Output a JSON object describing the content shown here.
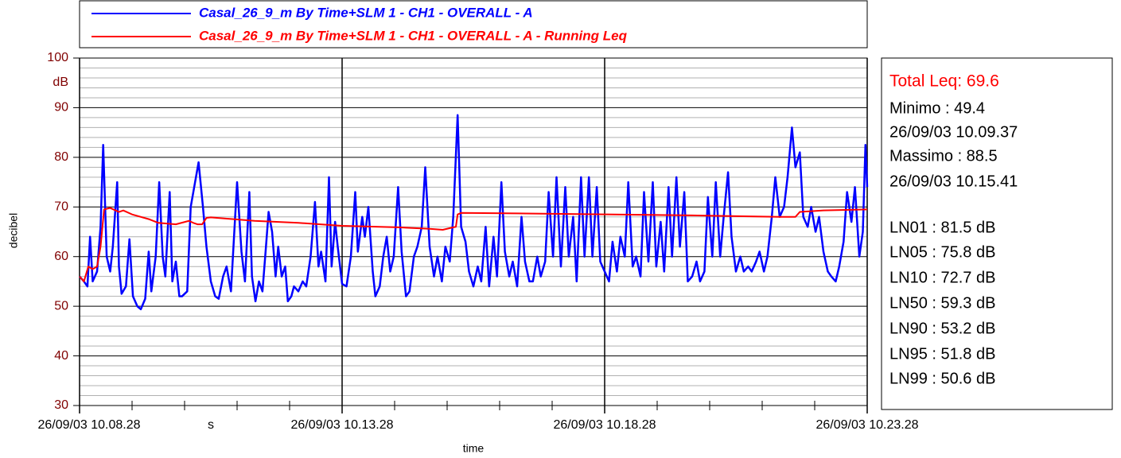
{
  "chart_data": {
    "type": "line",
    "x_label": "time",
    "x_unit": "s",
    "y_label": "decibel",
    "y_unit": "dB",
    "xlim": [
      0,
      900
    ],
    "xticks": [
      {
        "value": 0,
        "label": "26/09/03 10.08.28"
      },
      {
        "value": 300,
        "label": "26/09/03 10.13.28"
      },
      {
        "value": 600,
        "label": "26/09/03 10.18.28"
      },
      {
        "value": 900,
        "label": "26/09/03 10.23.28"
      }
    ],
    "xminorticks": [
      60,
      120,
      180,
      240,
      360,
      420,
      480,
      540,
      660,
      720,
      780,
      840
    ],
    "ylim": [
      30,
      100
    ],
    "yticks": [
      30,
      40,
      50,
      60,
      70,
      80,
      90,
      100
    ],
    "yminorticks": [
      32,
      34,
      36,
      38,
      42,
      44,
      46,
      48,
      52,
      54,
      56,
      58,
      62,
      64,
      66,
      68,
      72,
      74,
      76,
      78,
      82,
      84,
      86,
      88,
      92,
      94,
      96,
      98
    ],
    "grid": true,
    "series": [
      {
        "name": "Casal_26_9_m By Time+SLM 1 - CH1 - OVERALL - A",
        "color": "#0000ff",
        "x": [
          0,
          5,
          9,
          12,
          15,
          20,
          24,
          27,
          31,
          35,
          38,
          43,
          45,
          48,
          53,
          57,
          61,
          66,
          70,
          75,
          79,
          82,
          87,
          91,
          95,
          98,
          103,
          106,
          110,
          114,
          117,
          123,
          127,
          132,
          136,
          141,
          145,
          150,
          155,
          159,
          164,
          168,
          173,
          180,
          185,
          189,
          194,
          197,
          201,
          205,
          209,
          213,
          216,
          220,
          224,
          227,
          231,
          235,
          238,
          242,
          245,
          250,
          255,
          259,
          264,
          269,
          273,
          276,
          281,
          285,
          288,
          292,
          295,
          300,
          305,
          310,
          315,
          318,
          323,
          326,
          330,
          335,
          338,
          343,
          347,
          351,
          355,
          359,
          364,
          368,
          373,
          377,
          382,
          386,
          391,
          395,
          400,
          405,
          409,
          414,
          418,
          423,
          427,
          432,
          436,
          441,
          445,
          450,
          455,
          459,
          464,
          468,
          473,
          477,
          482,
          486,
          491,
          495,
          500,
          505,
          509,
          514,
          518,
          523,
          527,
          532,
          536,
          541,
          545,
          550,
          555,
          559,
          564,
          568,
          573,
          577,
          582,
          586,
          591,
          595,
          600,
          605,
          609,
          614,
          618,
          623,
          627,
          632,
          636,
          641,
          645,
          650,
          655,
          659,
          664,
          668,
          673,
          677,
          682,
          686,
          691,
          695,
          700,
          705,
          709,
          714,
          718,
          723,
          727,
          732,
          736,
          741,
          745,
          750,
          755,
          759,
          764,
          768,
          773,
          777,
          782,
          786,
          791,
          795,
          800,
          805,
          809,
          814,
          818,
          823,
          827,
          832,
          836,
          841,
          845,
          850,
          855,
          859,
          864,
          868,
          873,
          877,
          882,
          886,
          891,
          895,
          898,
          900
        ],
        "values": [
          56,
          55,
          54,
          64,
          55,
          57,
          66,
          82.5,
          60,
          57,
          62,
          75,
          58,
          52.5,
          54,
          63.5,
          52,
          50,
          49.4,
          51.5,
          61,
          53,
          60,
          75,
          60,
          56,
          73,
          55,
          59,
          52,
          52,
          53,
          70,
          75,
          79,
          70,
          62,
          55,
          52,
          51.5,
          56,
          58,
          53,
          75,
          61,
          55,
          73,
          56,
          51,
          55,
          53,
          62,
          69,
          65,
          56,
          62,
          56,
          58,
          51,
          52,
          54,
          53,
          55,
          54,
          60,
          71,
          58,
          61,
          55,
          76,
          58,
          67,
          62,
          54.5,
          54,
          60,
          73,
          61,
          68,
          64,
          70,
          57,
          52,
          54,
          60,
          64,
          57,
          60,
          74,
          61,
          52,
          53,
          60,
          62,
          66,
          78,
          62,
          56,
          60,
          55,
          62,
          59,
          68,
          88.5,
          66,
          63,
          57,
          54,
          58,
          55,
          66,
          54,
          64,
          56,
          75,
          61,
          56,
          59,
          54,
          68,
          59,
          55,
          55,
          60,
          56,
          59,
          73,
          60,
          76,
          58,
          74,
          60,
          68,
          55,
          76,
          60,
          76,
          60,
          74,
          59,
          57,
          55,
          63,
          57,
          64,
          60,
          75,
          58,
          60,
          56,
          73,
          59,
          75,
          58,
          67,
          57,
          74,
          60,
          76,
          62,
          73,
          55,
          56,
          59,
          55,
          57,
          72,
          60,
          75,
          60,
          68,
          77,
          64,
          57,
          60,
          57,
          58,
          57,
          59,
          61,
          57,
          60,
          68,
          76,
          68,
          70,
          76,
          86,
          78,
          81,
          68,
          66,
          70,
          65,
          68,
          61,
          57,
          56,
          55,
          58,
          63,
          73,
          67,
          74,
          60,
          65,
          82.5,
          74
        ]
      },
      {
        "name": "Casal_26_9_m By Time+SLM 1 - CH1 - OVERALL - A - Running Leq",
        "color": "#ff0000",
        "x": [
          0,
          5,
          10,
          15,
          20,
          24,
          28,
          35,
          45,
          50,
          60,
          80,
          90,
          110,
          125,
          130,
          135,
          140,
          145,
          150,
          200,
          250,
          300,
          364,
          400,
          415,
          427,
          430,
          432,
          436,
          500,
          600,
          700,
          800,
          818,
          823,
          850,
          900
        ],
        "values": [
          56,
          55,
          58,
          57.5,
          58,
          62,
          69.5,
          69.8,
          69,
          69.3,
          68.5,
          67.5,
          66.8,
          66.5,
          67.2,
          66.8,
          66.5,
          66.5,
          67.8,
          67.9,
          67.2,
          66.8,
          66.2,
          65.9,
          65.6,
          65.4,
          65.9,
          66,
          68.5,
          68.8,
          68.7,
          68.5,
          68.3,
          68,
          68,
          69,
          69.3,
          69.5
        ]
      }
    ],
    "annotations": [
      {
        "text": "Total Leq: 69.6",
        "color": "#ff0000"
      },
      {
        "text": "Minimo : 49.4",
        "color": "#000000"
      },
      {
        "text": "26/09/03 10.09.37",
        "color": "#000000"
      },
      {
        "text": "Massimo : 88.5",
        "color": "#000000"
      },
      {
        "text": "26/09/03 10.15.41",
        "color": "#000000"
      },
      {
        "text": "LN01 : 81.5 dB",
        "color": "#000000"
      },
      {
        "text": "LN05 : 75.8 dB",
        "color": "#000000"
      },
      {
        "text": "LN10 : 72.7 dB",
        "color": "#000000"
      },
      {
        "text": "LN50 : 59.3 dB",
        "color": "#000000"
      },
      {
        "text": "LN90 : 53.2 dB",
        "color": "#000000"
      },
      {
        "text": "LN95 : 51.8 dB",
        "color": "#000000"
      },
      {
        "text": "LN99 : 50.6 dB",
        "color": "#000000"
      }
    ]
  }
}
